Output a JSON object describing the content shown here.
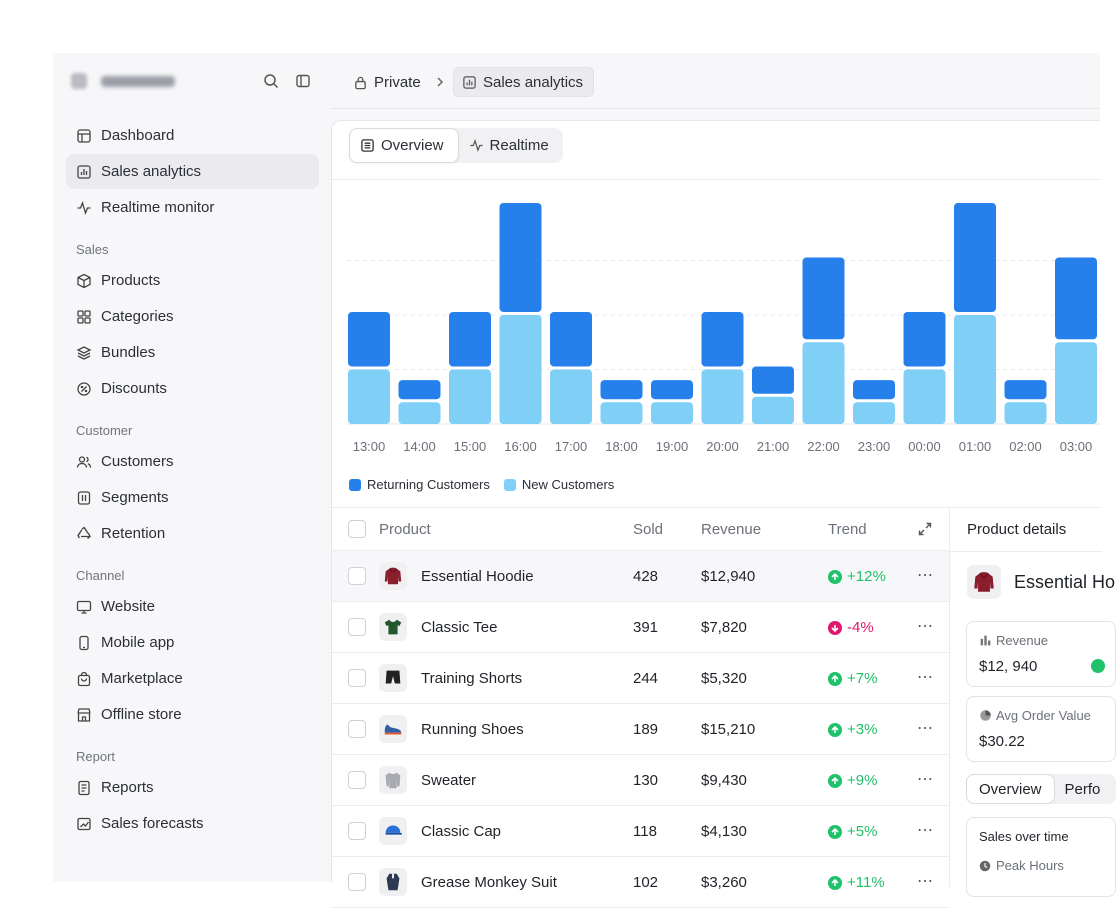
{
  "sidebar": {
    "top_items": [
      {
        "label": "Dashboard",
        "icon": "layout-icon"
      },
      {
        "label": "Sales analytics",
        "icon": "bar-chart-icon"
      },
      {
        "label": "Realtime monitor",
        "icon": "activity-icon"
      }
    ],
    "sections": [
      {
        "title": "Sales",
        "items": [
          "Products",
          "Categories",
          "Bundles",
          "Discounts"
        ]
      },
      {
        "title": "Customer",
        "items": [
          "Customers",
          "Segments",
          "Retention"
        ]
      },
      {
        "title": "Channel",
        "items": [
          "Website",
          "Mobile app",
          "Marketplace",
          "Offline store"
        ]
      },
      {
        "title": "Report",
        "items": [
          "Reports",
          "Sales forecasts"
        ]
      }
    ]
  },
  "breadcrumb": {
    "parent": "Private",
    "current": "Sales analytics"
  },
  "tabs": {
    "overview": "Overview",
    "realtime": "Realtime"
  },
  "chart_data": {
    "type": "bar",
    "stacked": true,
    "categories": [
      "13:00",
      "14:00",
      "15:00",
      "16:00",
      "17:00",
      "18:00",
      "19:00",
      "20:00",
      "21:00",
      "22:00",
      "23:00",
      "00:00",
      "01:00",
      "02:00",
      "03:00"
    ],
    "series": [
      {
        "name": "Returning Customers",
        "color": "#2680eb",
        "values": [
          2,
          0.7,
          2,
          4,
          2,
          0.7,
          0.7,
          2,
          1,
          3,
          0.7,
          2,
          4,
          0.7,
          3
        ]
      },
      {
        "name": "New Customers",
        "color": "#7fcff7",
        "values": [
          2,
          0.8,
          2,
          4,
          2,
          0.8,
          0.8,
          2,
          1,
          3,
          0.8,
          2,
          4,
          0.8,
          3
        ]
      }
    ],
    "ylim": [
      0,
      8
    ],
    "grid": true,
    "legend": "bottom-left"
  },
  "table": {
    "headers": {
      "product": "Product",
      "sold": "Sold",
      "revenue": "Revenue",
      "trend": "Trend"
    },
    "rows": [
      {
        "product": "Essential Hoodie",
        "sold": "428",
        "revenue": "$12,940",
        "trend": "+12%",
        "dir": "up",
        "icon": "hoodie-icon"
      },
      {
        "product": "Classic Tee",
        "sold": "391",
        "revenue": "$7,820",
        "trend": "-4%",
        "dir": "down",
        "icon": "tshirt-icon"
      },
      {
        "product": "Training Shorts",
        "sold": "244",
        "revenue": "$5,320",
        "trend": "+7%",
        "dir": "up",
        "icon": "shorts-icon"
      },
      {
        "product": "Running Shoes",
        "sold": "189",
        "revenue": "$15,210",
        "trend": "+3%",
        "dir": "up",
        "icon": "shoe-icon"
      },
      {
        "product": "Sweater",
        "sold": "130",
        "revenue": "$9,430",
        "trend": "+9%",
        "dir": "up",
        "icon": "sweater-icon"
      },
      {
        "product": "Classic Cap",
        "sold": "118",
        "revenue": "$4,130",
        "trend": "+5%",
        "dir": "up",
        "icon": "cap-icon"
      },
      {
        "product": "Grease Monkey Suit",
        "sold": "102",
        "revenue": "$3,260",
        "trend": "+11%",
        "dir": "up",
        "icon": "suit-icon"
      }
    ]
  },
  "details": {
    "title": "Product details",
    "name": "Essential Ho",
    "revenue_label": "Revenue",
    "revenue_value": "$12, 940",
    "aov_label": "Avg Order Value",
    "aov_value": "$30.22",
    "tab_overview": "Overview",
    "tab_perf": "Perfo",
    "sales_time_label": "Sales over time",
    "peak_label": "Peak Hours"
  },
  "colors": {
    "up": "#1fc16b",
    "down": "#e0186c",
    "returning": "#2680eb",
    "new": "#7fcff7"
  }
}
